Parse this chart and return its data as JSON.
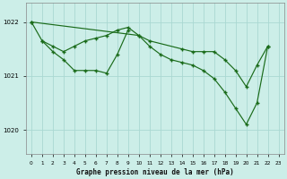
{
  "background_color": "#cceee8",
  "grid_color": "#aad8d2",
  "line_color": "#1a6b1a",
  "xlabel": "Graphe pression niveau de la mer (hPa)",
  "xlim": [
    -0.5,
    23.5
  ],
  "ylim": [
    1019.55,
    1022.35
  ],
  "yticks": [
    1020,
    1021,
    1022
  ],
  "xticks": [
    0,
    1,
    2,
    3,
    4,
    5,
    6,
    7,
    8,
    9,
    10,
    11,
    12,
    13,
    14,
    15,
    16,
    17,
    18,
    19,
    20,
    21,
    22,
    23
  ],
  "series_a": {
    "x": [
      0,
      1,
      2,
      3,
      4,
      5,
      6,
      7,
      8,
      9,
      10,
      11,
      14,
      15,
      16,
      17,
      18,
      19,
      20,
      21,
      22
    ],
    "y": [
      1022.0,
      1021.65,
      1021.55,
      1021.45,
      1021.55,
      1021.65,
      1021.7,
      1021.75,
      1021.85,
      1021.9,
      1021.75,
      1021.65,
      1021.5,
      1021.45,
      1021.45,
      1021.45,
      1021.3,
      1021.1,
      1020.8,
      1021.2,
      1021.55
    ]
  },
  "series_b": {
    "x": [
      1,
      2,
      3,
      4,
      5,
      6,
      7,
      8,
      9
    ],
    "y": [
      1021.65,
      1021.45,
      1021.3,
      1021.1,
      1021.1,
      1021.1,
      1021.05,
      1021.4,
      1021.85
    ]
  },
  "series_c": {
    "x": [
      0,
      10,
      11,
      12,
      13,
      14,
      15,
      16,
      17,
      18,
      19,
      20,
      21,
      22
    ],
    "y": [
      1022.0,
      1021.75,
      1021.55,
      1021.4,
      1021.3,
      1021.25,
      1021.2,
      1021.1,
      1020.95,
      1020.7,
      1020.4,
      1020.1,
      1020.5,
      1021.55
    ]
  }
}
